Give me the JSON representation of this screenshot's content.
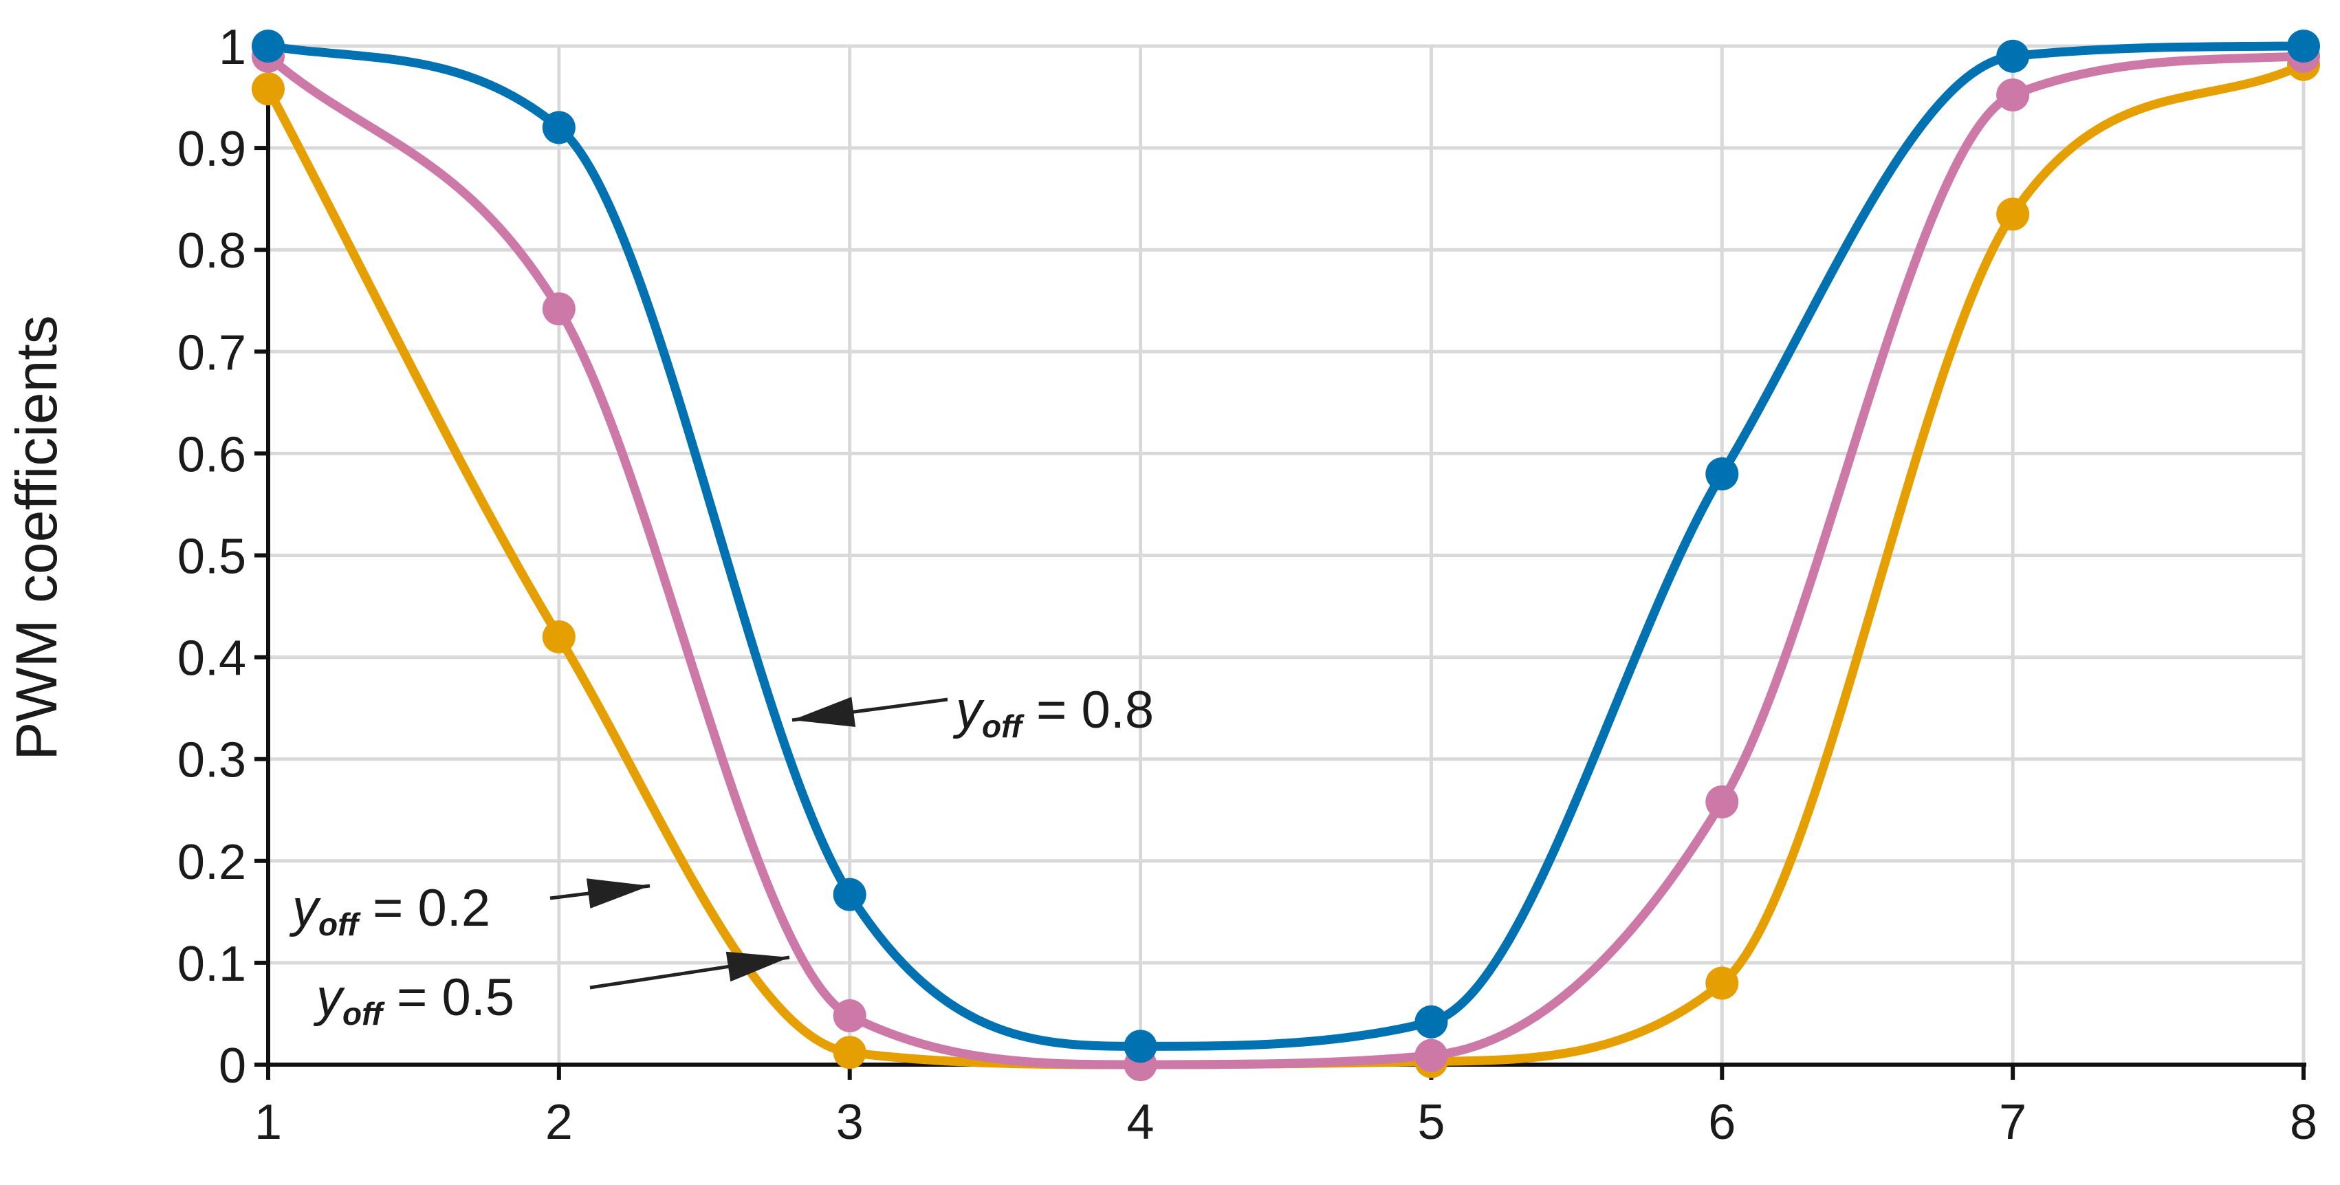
{
  "chart_data": {
    "type": "line",
    "title": "",
    "xlabel": "",
    "ylabel": "PWM coefficients",
    "xlim": [
      1,
      8
    ],
    "ylim": [
      0,
      1
    ],
    "x_ticks": [
      "1",
      "2",
      "3",
      "4",
      "5",
      "6",
      "7",
      "8"
    ],
    "y_ticks": [
      "0",
      "0.1",
      "0.2",
      "0.3",
      "0.4",
      "0.5",
      "0.6",
      "0.7",
      "0.8",
      "0.9",
      "1"
    ],
    "grid": true,
    "x": [
      1,
      2,
      3,
      4,
      5,
      6,
      7,
      8
    ],
    "series": [
      {
        "color": "#0072b2",
        "values": [
          1.0,
          0.92,
          0.167,
          0.018,
          0.042,
          0.58,
          0.99,
          1.0
        ]
      },
      {
        "color": "#cc79a7",
        "values": [
          0.99,
          0.742,
          0.048,
          0.0,
          0.009,
          0.258,
          0.952,
          0.99
        ]
      },
      {
        "color": "#e69f00",
        "values": [
          0.958,
          0.42,
          0.012,
          0.0,
          0.003,
          0.08,
          0.835,
          0.982
        ]
      }
    ],
    "annotations": [
      {
        "var": "y",
        "sub": "off",
        "rest": " = 0.8",
        "series_color": "#0072b2"
      },
      {
        "var": "y",
        "sub": "off",
        "rest": " = 0.2",
        "series_color": "#e69f00"
      },
      {
        "var": "y",
        "sub": "off",
        "rest": " = 0.5",
        "series_color": "#cc79a7"
      }
    ]
  }
}
